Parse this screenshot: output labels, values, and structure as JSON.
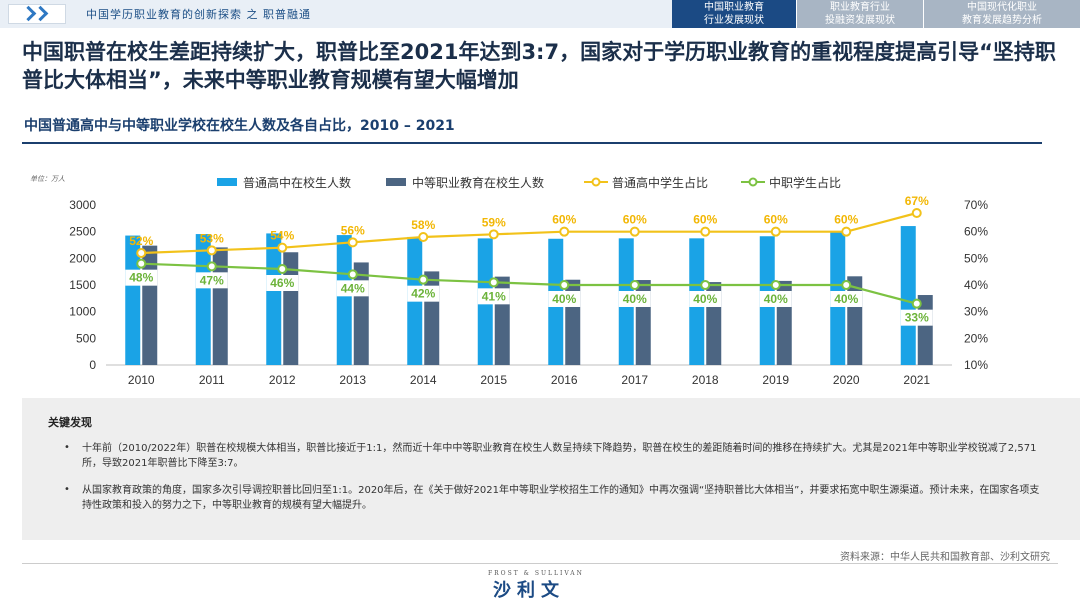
{
  "topbar": {
    "breadcrumb": "中国学历职业教育的创新探索 之 职普融通",
    "tabs": [
      {
        "line1": "中国职业教育",
        "line2": "行业发展现状",
        "active": true
      },
      {
        "line1": "职业教育行业",
        "line2": "投融资发展现状",
        "active": false
      },
      {
        "line1": "中国现代化职业",
        "line2": "教育发展趋势分析",
        "active": false
      }
    ]
  },
  "headline": "中国职普在校生差距持续扩大，职普比至2021年达到3:7，国家对于学历职业教育的重视程度提高引导“坚持职普比大体相当”，未来中等职业教育规模有望大幅增加",
  "subtitle": "中国普通高中与中等职业学校在校生人数及各自占比，2010 – 2021",
  "chart_data": {
    "type": "bar",
    "unit_label": "单位：万人",
    "categories": [
      "2010",
      "2011",
      "2012",
      "2013",
      "2014",
      "2015",
      "2016",
      "2017",
      "2018",
      "2019",
      "2020",
      "2021"
    ],
    "series": [
      {
        "name": "普通高中在校生人数",
        "kind": "bar",
        "axis": "left",
        "color": "#1aa3e6",
        "values": [
          2427,
          2455,
          2467,
          2436,
          2401,
          2374,
          2367,
          2375,
          2375,
          2414,
          2495,
          2605
        ]
      },
      {
        "name": "中等职业教育在校生人数",
        "kind": "bar",
        "axis": "left",
        "color": "#4c6582",
        "values": [
          2238,
          2205,
          2114,
          1923,
          1755,
          1657,
          1599,
          1593,
          1555,
          1577,
          1663,
          1312
        ]
      },
      {
        "name": "普通高中学生占比",
        "kind": "line",
        "axis": "right",
        "color": "#f2c21a",
        "values": [
          52,
          53,
          54,
          56,
          58,
          59,
          60,
          60,
          60,
          60,
          60,
          67
        ],
        "labels": [
          "52%",
          "53%",
          "54%",
          "56%",
          "58%",
          "59%",
          "60%",
          "60%",
          "60%",
          "60%",
          "60%",
          "67%"
        ]
      },
      {
        "name": "中职学生占比",
        "kind": "line",
        "axis": "right",
        "color": "#7cc242",
        "values": [
          48,
          47,
          46,
          44,
          42,
          41,
          40,
          40,
          40,
          40,
          40,
          33
        ],
        "labels": [
          "48%",
          "47%",
          "46%",
          "44%",
          "42%",
          "41%",
          "40%",
          "40%",
          "40%",
          "40%",
          "40%",
          "33%"
        ]
      }
    ],
    "ylim_left": [
      0,
      3000
    ],
    "ylim_right": [
      10,
      70
    ],
    "yticks_left": [
      "0",
      "500",
      "1000",
      "1500",
      "2000",
      "2500",
      "3000"
    ],
    "yticks_right": [
      "10%",
      "20%",
      "30%",
      "40%",
      "50%",
      "60%",
      "70%"
    ],
    "legend_position": "top",
    "grid": false
  },
  "findings": {
    "title": "关键发现",
    "bullets": [
      "十年前（2010/2022年）职普在校规模大体相当，职普比接近于1:1，然而近十年中中等职业教育在校生人数呈持续下降趋势，职普在校生的差距随着时间的推移在持续扩大。尤其是2021年中等职业学校锐减了2,571所，导致2021年职普比下降至3:7。",
      "从国家教育政策的角度，国家多次引导调控职普比回归至1:1。2020年后，在《关于做好2021年中等职业学校招生工作的通知》中再次强调“坚持职普比大体相当”，并要求拓宽中职生源渠道。预计未来，在国家各项支持性政策和投入的努力之下，中等职业教育的规模有望大幅提升。"
    ]
  },
  "source": "资料来源：中华人民共和国教育部、沙利文研究",
  "brand": {
    "small": "FROST & SULLIVAN",
    "name": "沙利文"
  }
}
